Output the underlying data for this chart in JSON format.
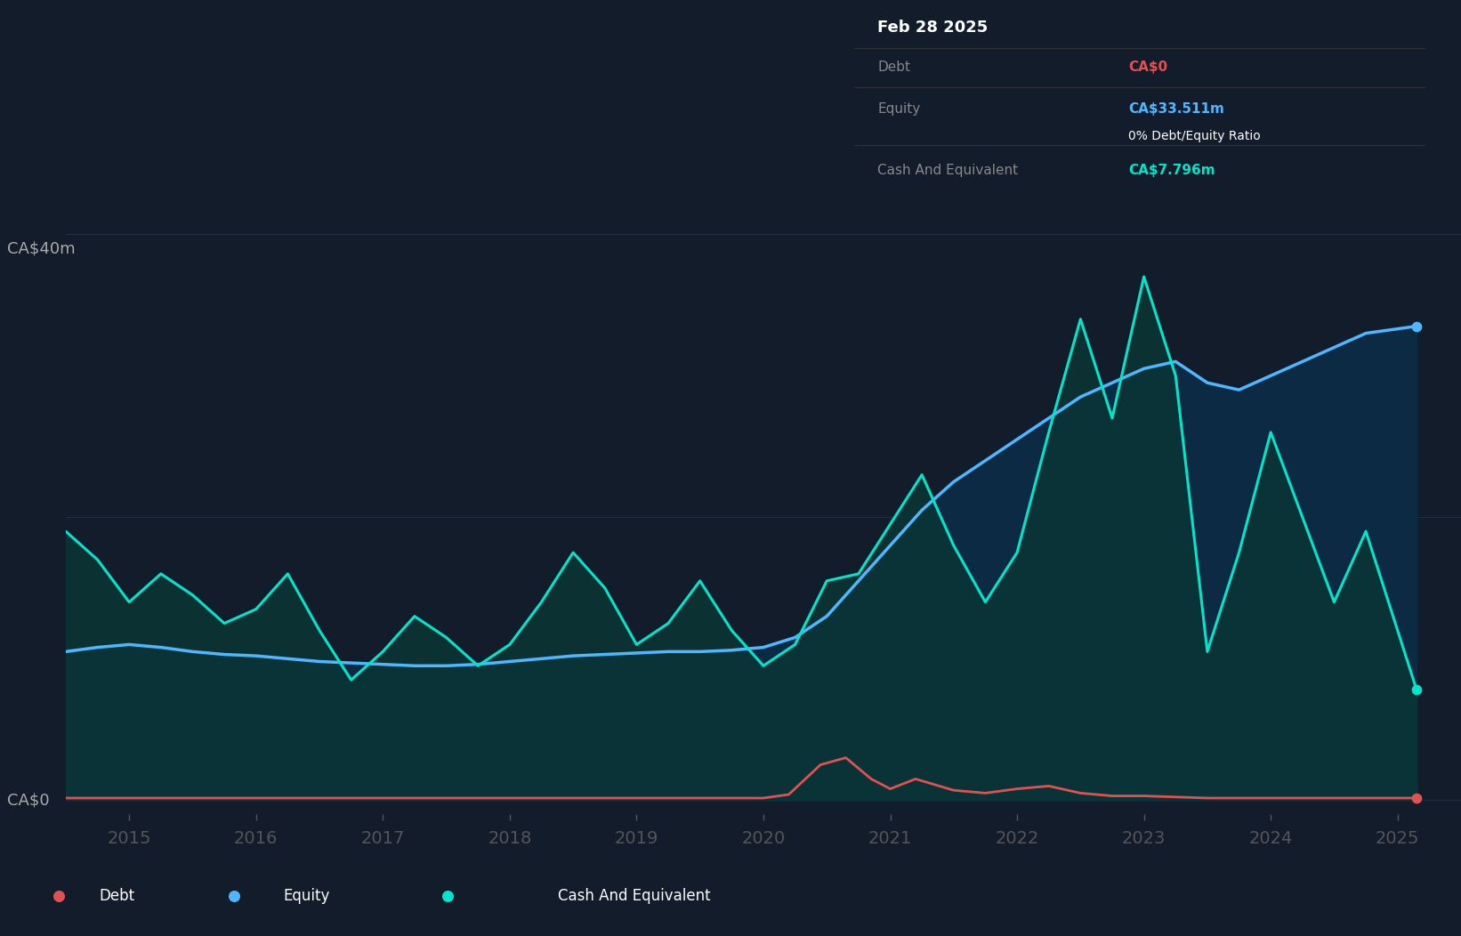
{
  "bg_color": "#131c2b",
  "plot_bg_color": "#131c2b",
  "grid_color": "#2a3350",
  "tooltip_bg": "#000000",
  "debt_color": "#e05252",
  "equity_color": "#4db8ff",
  "cash_color": "#00e5cc",
  "ylabel_40": "CA$40m",
  "ylabel_0": "CA$0",
  "xtick_labels": [
    "2015",
    "2016",
    "2017",
    "2018",
    "2019",
    "2020",
    "2021",
    "2022",
    "2023",
    "2024",
    "2025"
  ],
  "xtick_positions": [
    2015.0,
    2016.0,
    2017.0,
    2018.0,
    2019.0,
    2020.0,
    2021.0,
    2022.0,
    2023.0,
    2024.0,
    2025.0
  ],
  "ylim": [
    -1,
    42
  ],
  "xlim": [
    2014.5,
    2025.5
  ],
  "tooltip_title": "Feb 28 2025",
  "tooltip_debt_label": "Debt",
  "tooltip_debt_value": "CA$0",
  "tooltip_equity_label": "Equity",
  "tooltip_equity_value": "CA$33.511m",
  "tooltip_ratio": "0% Debt/Equity Ratio",
  "tooltip_cash_label": "Cash And Equivalent",
  "tooltip_cash_value": "CA$7.796m",
  "legend_debt": "Debt",
  "legend_equity": "Equity",
  "legend_cash": "Cash And Equivalent",
  "equity_x": [
    2014.5,
    2014.75,
    2015.0,
    2015.25,
    2015.5,
    2015.75,
    2016.0,
    2016.25,
    2016.5,
    2016.75,
    2017.0,
    2017.25,
    2017.5,
    2017.75,
    2018.0,
    2018.25,
    2018.5,
    2018.75,
    2019.0,
    2019.25,
    2019.5,
    2019.75,
    2020.0,
    2020.25,
    2020.5,
    2020.75,
    2021.0,
    2021.25,
    2021.5,
    2021.75,
    2022.0,
    2022.25,
    2022.5,
    2022.75,
    2023.0,
    2023.25,
    2023.5,
    2023.75,
    2024.0,
    2024.25,
    2024.5,
    2024.75,
    2025.15
  ],
  "equity_y": [
    10.5,
    10.8,
    11.0,
    10.8,
    10.5,
    10.3,
    10.2,
    10.0,
    9.8,
    9.7,
    9.6,
    9.5,
    9.5,
    9.6,
    9.8,
    10.0,
    10.2,
    10.3,
    10.4,
    10.5,
    10.5,
    10.6,
    10.8,
    11.5,
    13.0,
    15.5,
    18.0,
    20.5,
    22.5,
    24.0,
    25.5,
    27.0,
    28.5,
    29.5,
    30.5,
    31.0,
    29.5,
    29.0,
    30.0,
    31.0,
    32.0,
    33.0,
    33.5
  ],
  "cash_x": [
    2014.5,
    2014.75,
    2015.0,
    2015.25,
    2015.5,
    2015.75,
    2016.0,
    2016.25,
    2016.5,
    2016.75,
    2017.0,
    2017.25,
    2017.5,
    2017.75,
    2018.0,
    2018.25,
    2018.5,
    2018.75,
    2019.0,
    2019.25,
    2019.5,
    2019.75,
    2020.0,
    2020.25,
    2020.5,
    2020.75,
    2021.0,
    2021.25,
    2021.5,
    2021.75,
    2022.0,
    2022.25,
    2022.5,
    2022.75,
    2023.0,
    2023.25,
    2023.5,
    2023.75,
    2024.0,
    2024.25,
    2024.5,
    2024.75,
    2025.15
  ],
  "cash_y": [
    19.0,
    17.0,
    14.0,
    16.0,
    14.5,
    12.5,
    13.5,
    16.0,
    12.0,
    8.5,
    10.5,
    13.0,
    11.5,
    9.5,
    11.0,
    14.0,
    17.5,
    15.0,
    11.0,
    12.5,
    15.5,
    12.0,
    9.5,
    11.0,
    15.5,
    16.0,
    19.5,
    23.0,
    18.0,
    14.0,
    17.5,
    26.0,
    34.0,
    27.0,
    37.0,
    30.0,
    10.5,
    17.5,
    26.0,
    20.0,
    14.0,
    19.0,
    7.8
  ],
  "debt_x": [
    2014.5,
    2015.0,
    2015.5,
    2016.0,
    2016.5,
    2017.0,
    2017.5,
    2018.0,
    2018.5,
    2019.0,
    2019.5,
    2020.0,
    2020.2,
    2020.45,
    2020.65,
    2020.85,
    2021.0,
    2021.2,
    2021.5,
    2021.75,
    2022.0,
    2022.25,
    2022.5,
    2022.75,
    2023.0,
    2023.5,
    2024.0,
    2024.5,
    2025.15
  ],
  "debt_y": [
    0.15,
    0.15,
    0.15,
    0.15,
    0.15,
    0.15,
    0.15,
    0.15,
    0.15,
    0.15,
    0.15,
    0.15,
    0.4,
    2.5,
    3.0,
    1.5,
    0.8,
    1.5,
    0.7,
    0.5,
    0.8,
    1.0,
    0.5,
    0.3,
    0.3,
    0.15,
    0.15,
    0.15,
    0.15
  ]
}
